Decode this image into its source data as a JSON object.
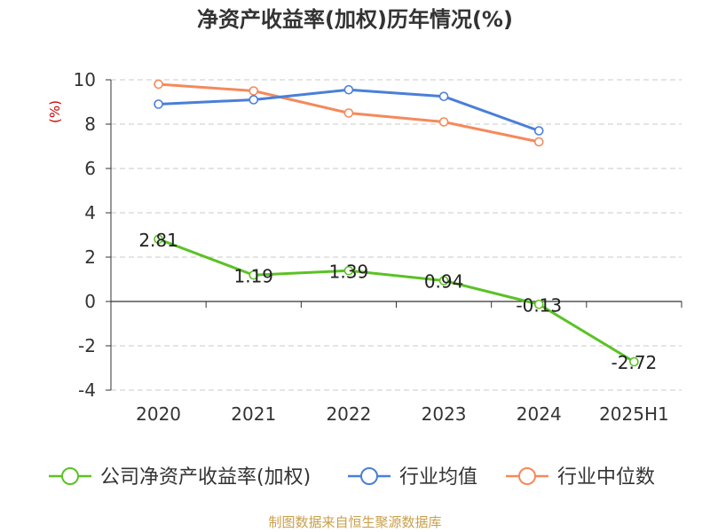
{
  "chart_data": {
    "type": "line",
    "title": "净资产收益率(加权)历年情况(%)",
    "ylabel": "(%)",
    "categories": [
      "2020",
      "2021",
      "2022",
      "2023",
      "2024",
      "2025H1"
    ],
    "ylim": [
      -4,
      10
    ],
    "yticks": [
      10,
      8,
      6,
      4,
      2,
      0,
      -2,
      -4
    ],
    "ytick_labels": [
      "10",
      "8",
      "6",
      "4",
      "2",
      "0",
      "-2",
      "-4"
    ],
    "grid": true,
    "legend_position": "bottom",
    "series": [
      {
        "name": "公司净资产收益率(加权)",
        "color": "#5bc225",
        "values": [
          2.81,
          1.19,
          1.39,
          0.94,
          -0.13,
          -2.72
        ],
        "labels": [
          "2.81",
          "1.19",
          "1.39",
          "0.94",
          "-0.13",
          "-2.72"
        ]
      },
      {
        "name": "行业均值",
        "color": "#4a7fd8",
        "values": [
          8.9,
          9.1,
          9.55,
          9.25,
          7.7,
          null
        ]
      },
      {
        "name": "行业中位数",
        "color": "#f5895c",
        "values": [
          9.8,
          9.5,
          8.5,
          8.1,
          7.2,
          null
        ]
      }
    ],
    "source": "制图数据来自恒生聚源数据库"
  }
}
